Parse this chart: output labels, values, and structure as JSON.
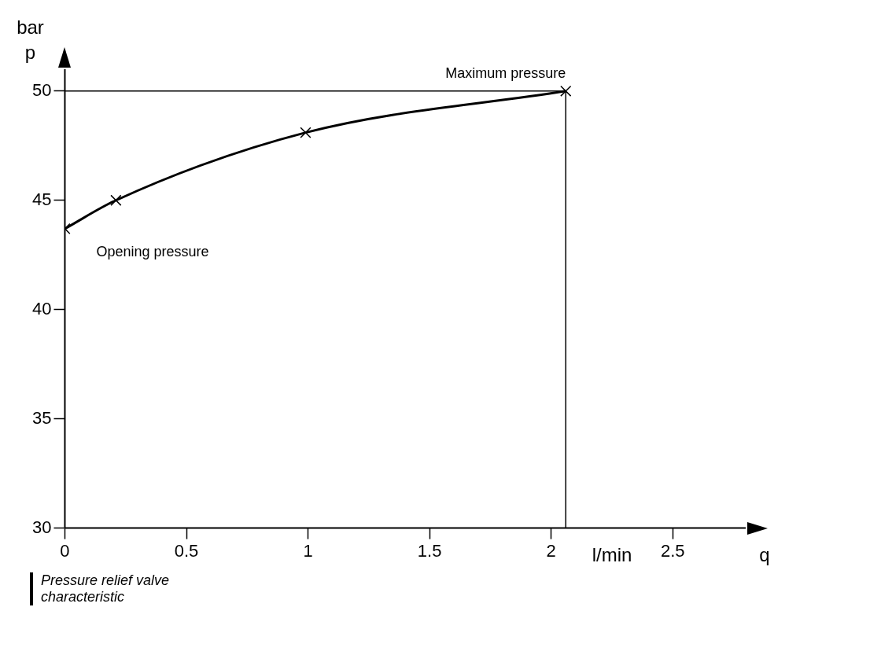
{
  "chart_data": {
    "type": "line",
    "xlabel": "q",
    "ylabel": "p",
    "xlim": [
      0,
      2.8
    ],
    "ylim": [
      30,
      51
    ],
    "xticks": [
      0,
      0.5,
      1,
      1.5,
      2,
      2.5
    ],
    "yticks": [
      30,
      35,
      40,
      45,
      50
    ],
    "grid": false,
    "legend": false,
    "series": [
      {
        "color": "#000000",
        "x": [
          0,
          0.21,
          0.99,
          2.06
        ],
        "values": [
          43.7,
          45.0,
          48.1,
          50.0
        ],
        "marker": "cross",
        "line_style": "solid"
      },
      {
        "color": "#000000",
        "x": [
          0,
          2.06,
          2.06
        ],
        "values": [
          50,
          50,
          30
        ],
        "marker": "none",
        "line_style": "solid"
      }
    ],
    "annotations": [
      {
        "text": "Opening pressure",
        "x": 0,
        "y": 43.7
      },
      {
        "text": "Maximum pressure",
        "x": 2.06,
        "y": 50
      },
      "l/min",
      "bar",
      "Pressure relief valve characteristic"
    ]
  }
}
